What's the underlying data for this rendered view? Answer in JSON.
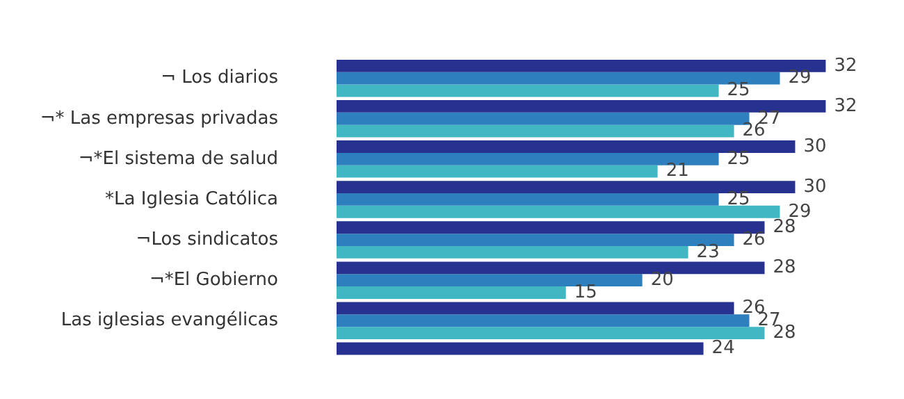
{
  "chart_data": {
    "type": "bar",
    "orientation": "horizontal",
    "data_labels": true,
    "legend": false,
    "categories": [
      "¬ Los diarios",
      "¬* Las empresas privadas",
      "¬*El sistema de salud",
      "*La Iglesia Católica",
      "¬Los sindicatos",
      "¬*El Gobierno",
      "Las iglesias evangélicas",
      null
    ],
    "series": [
      {
        "color": "#27318f",
        "values": [
          32,
          32,
          30,
          30,
          28,
          28,
          26,
          24
        ]
      },
      {
        "color": "#2e7fbd",
        "values": [
          29,
          27,
          25,
          25,
          26,
          20,
          27,
          null
        ]
      },
      {
        "color": "#41b7c4",
        "values": [
          25,
          26,
          21,
          29,
          23,
          15,
          28,
          null
        ]
      }
    ]
  }
}
